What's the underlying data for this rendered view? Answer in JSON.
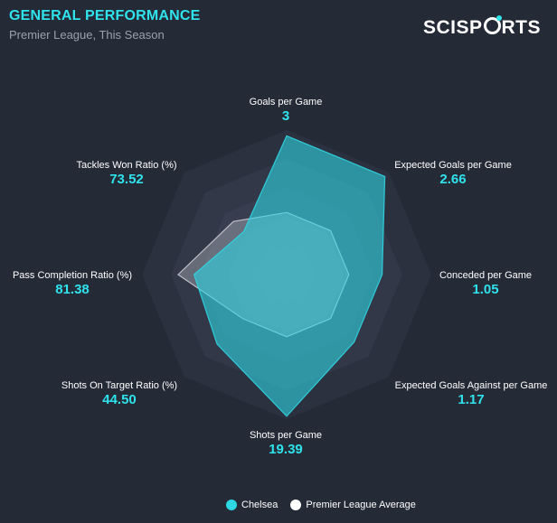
{
  "header": {
    "title": "GENERAL PERFORMANCE",
    "subtitle": "Premier League, This Season",
    "brand_prefix": "SCISP",
    "brand_suffix": "RTS"
  },
  "chart_data": {
    "type": "radar",
    "axes": [
      {
        "label": "Goals per Game",
        "value": "3"
      },
      {
        "label": "Expected Goals per Game",
        "value": "2.66"
      },
      {
        "label": "Conceded per Game",
        "value": "1.05"
      },
      {
        "label": "Expected Goals Against per Game",
        "value": "1.17"
      },
      {
        "label": "Shots per Game",
        "value": "19.39"
      },
      {
        "label": "Shots On Target Ratio (%)",
        "value": "44.50"
      },
      {
        "label": "Pass Completion Ratio (%)",
        "value": "81.38"
      },
      {
        "label": "Tackles Won Ratio (%)",
        "value": "73.52"
      }
    ],
    "series": [
      {
        "name": "Chelsea",
        "color": "#2fd6e3",
        "normalized": [
          0.96,
          0.96,
          0.66,
          0.66,
          0.98,
          0.68,
          0.64,
          0.42
        ]
      },
      {
        "name": "Premier League Average",
        "color": "#ffffff",
        "normalized": [
          0.43,
          0.43,
          0.43,
          0.43,
          0.43,
          0.43,
          0.75,
          0.52
        ]
      }
    ],
    "grid_levels": 5
  },
  "colors": {
    "title": "#2fe3ec",
    "value": "#2fe3ec",
    "background": "#252a37",
    "grid": "#333948"
  },
  "legend": {
    "items": [
      {
        "name": "Chelsea",
        "color": "#2fd6e3"
      },
      {
        "name": "Premier League Average",
        "color": "#ffffff"
      }
    ]
  }
}
